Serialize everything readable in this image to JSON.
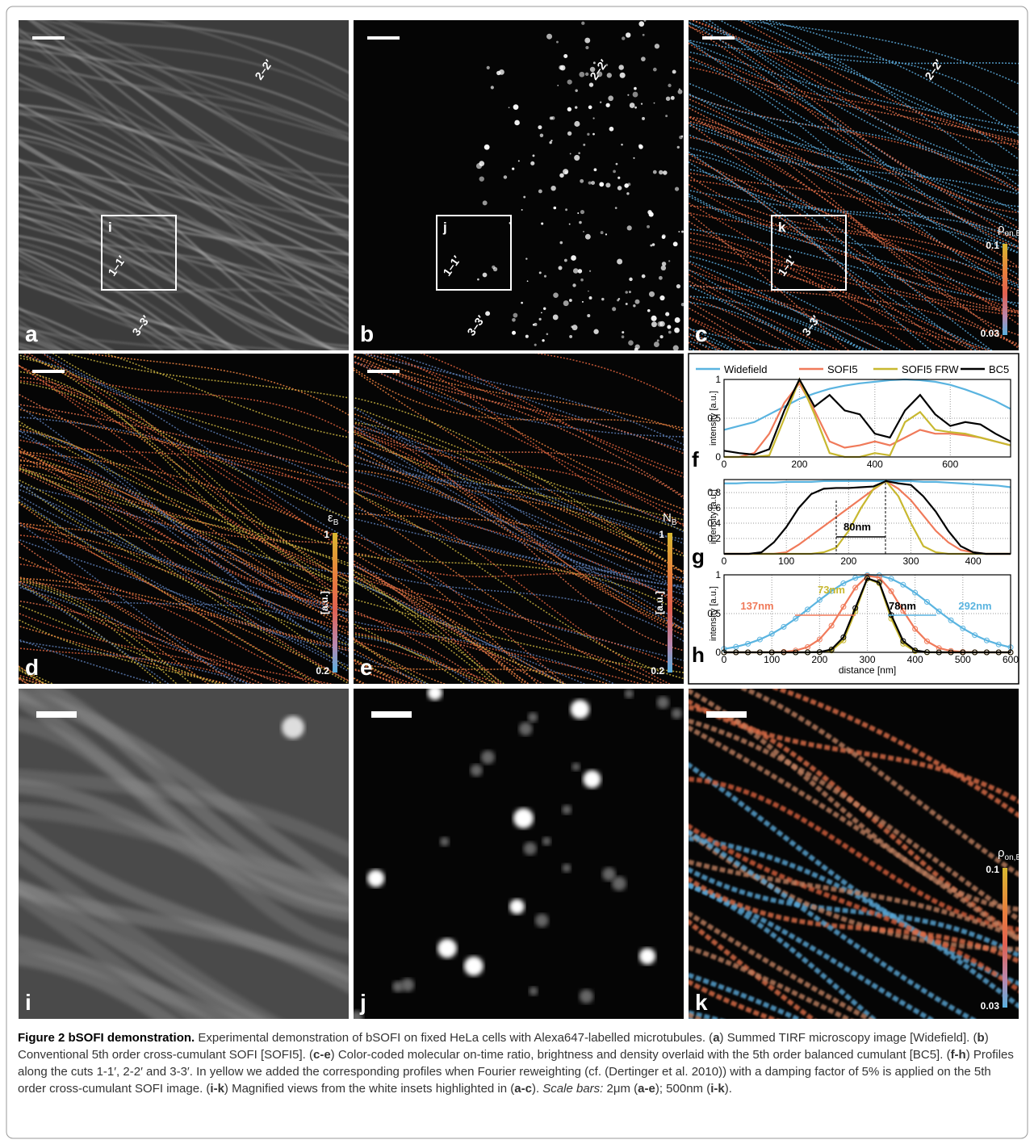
{
  "panels": [
    {
      "label": "a",
      "inset": "i",
      "cuts": [
        "2–2′",
        "1–1′",
        "3–3′"
      ]
    },
    {
      "label": "b",
      "inset": "j",
      "cuts": [
        "2–2′",
        "1–1′",
        "3–3′"
      ]
    },
    {
      "label": "c",
      "inset": "k",
      "cuts": [
        "2–2′",
        "1–1′",
        "3–3′"
      ],
      "colorbar": {
        "title": "ρ",
        "subscript": "on,B",
        "max": 0.1,
        "min": 0.03
      }
    },
    {
      "label": "d",
      "colorbar": {
        "title": "ε",
        "subscript": "B",
        "max": 1,
        "min": 0.2,
        "unit": "[a.u.]"
      }
    },
    {
      "label": "e",
      "colorbar": {
        "title": "N",
        "subscript": "B",
        "max": 1,
        "min": 0.2,
        "unit": "[a.u.]"
      }
    },
    {
      "label": "i"
    },
    {
      "label": "j"
    },
    {
      "label": "k",
      "colorbar": {
        "title": "ρ",
        "subscript": "on,B",
        "max": 0.1,
        "min": 0.03
      }
    }
  ],
  "chart_data": [
    {
      "type": "line",
      "panel": "f",
      "ylabel": "intensity [a.u.]",
      "grid": true,
      "x": [
        0,
        40,
        80,
        120,
        160,
        200,
        240,
        280,
        320,
        360,
        400,
        440,
        480,
        520,
        560,
        600,
        640,
        680,
        720,
        760
      ],
      "xlim": [
        0,
        760
      ],
      "xticks": [
        0,
        200,
        400,
        600
      ],
      "ylim": [
        0,
        1
      ],
      "yticks": [
        0,
        0.5,
        1
      ],
      "series": [
        {
          "name": "Widefield",
          "color": "#5ab4e0",
          "values": [
            0.35,
            0.4,
            0.45,
            0.55,
            0.65,
            0.75,
            0.82,
            0.88,
            0.92,
            0.95,
            0.97,
            0.99,
            1.0,
            0.99,
            0.97,
            0.93,
            0.87,
            0.8,
            0.72,
            0.62
          ]
        },
        {
          "name": "SOFI5",
          "color": "#f07a5a",
          "values": [
            0,
            0,
            0.05,
            0.3,
            0.7,
            0.95,
            0.6,
            0.2,
            0.12,
            0.15,
            0.2,
            0.15,
            0.25,
            0.35,
            0.3,
            0.3,
            0.28,
            0.25,
            0.2,
            0.15
          ]
        },
        {
          "name": "SOFI5 FRW",
          "color": "#c8b830",
          "values": [
            0,
            0,
            0,
            0.02,
            0.5,
            1.0,
            0.55,
            0.05,
            0,
            0,
            0.05,
            0.02,
            0.45,
            0.58,
            0.35,
            0.32,
            0.3,
            0.25,
            0.2,
            0.15
          ]
        },
        {
          "name": "BC5",
          "color": "#000000",
          "values": [
            0.08,
            0.05,
            0.03,
            0.1,
            0.6,
            1.0,
            0.65,
            0.8,
            0.6,
            0.55,
            0.3,
            0.25,
            0.6,
            0.8,
            0.55,
            0.4,
            0.45,
            0.42,
            0.3,
            0.2
          ]
        }
      ]
    },
    {
      "type": "line",
      "panel": "g",
      "ylabel": "intensity [a.u.]",
      "grid": true,
      "x": [
        0,
        20,
        40,
        60,
        80,
        100,
        120,
        140,
        160,
        180,
        200,
        220,
        240,
        260,
        280,
        300,
        320,
        340,
        360,
        380,
        400,
        420,
        440,
        460
      ],
      "xlim": [
        0,
        460
      ],
      "xticks": [
        0,
        100,
        200,
        300,
        400
      ],
      "ylim": [
        0,
        0.97
      ],
      "yticks": [
        0.2,
        0.4,
        0.6,
        0.8
      ],
      "annotations": [
        {
          "text": "80nm"
        }
      ],
      "series": [
        {
          "color": "#5ab4e0",
          "values": [
            0.92,
            0.92,
            0.93,
            0.93,
            0.93,
            0.94,
            0.94,
            0.94,
            0.95,
            0.95,
            0.95,
            0.95,
            0.95,
            0.95,
            0.95,
            0.95,
            0.94,
            0.94,
            0.93,
            0.92,
            0.91,
            0.9,
            0.89,
            0.87
          ]
        },
        {
          "color": "#f07a5a",
          "values": [
            0,
            0,
            0,
            0,
            0,
            0.02,
            0.12,
            0.24,
            0.36,
            0.48,
            0.6,
            0.72,
            0.84,
            0.95,
            0.85,
            0.7,
            0.5,
            0.3,
            0.15,
            0.05,
            0.02,
            0,
            0,
            0
          ]
        },
        {
          "color": "#c8b830",
          "values": [
            0,
            0,
            0,
            0,
            0,
            0,
            0,
            0,
            0.02,
            0.08,
            0.3,
            0.6,
            0.85,
            0.95,
            0.75,
            0.4,
            0.1,
            0.02,
            0,
            0,
            0,
            0,
            0,
            0
          ]
        },
        {
          "color": "#000000",
          "values": [
            0,
            0,
            0,
            0.02,
            0.15,
            0.35,
            0.6,
            0.78,
            0.85,
            0.86,
            0.86,
            0.87,
            0.88,
            0.95,
            0.92,
            0.9,
            0.75,
            0.55,
            0.3,
            0.1,
            0.02,
            0,
            0,
            0
          ]
        }
      ]
    },
    {
      "type": "line",
      "panel": "h",
      "ylabel": "intensity [a.u.]",
      "xlabel": "distance [nm]",
      "grid": true,
      "markers": true,
      "x": [
        0,
        25,
        50,
        75,
        100,
        125,
        150,
        175,
        200,
        225,
        250,
        275,
        300,
        325,
        350,
        375,
        400,
        425,
        450,
        475,
        500,
        525,
        550,
        575,
        600
      ],
      "xlim": [
        0,
        600
      ],
      "xticks": [
        0,
        100,
        200,
        300,
        400,
        500,
        600
      ],
      "ylim": [
        0,
        1
      ],
      "yticks": [
        0,
        0.5,
        1
      ],
      "annotations": [
        {
          "text": "137nm",
          "color": "#f07a5a"
        },
        {
          "text": "73nm",
          "color": "#c8b830"
        },
        {
          "text": "78nm",
          "color": "#000000"
        },
        {
          "text": "292nm",
          "color": "#5ab4e0"
        }
      ],
      "series": [
        {
          "color": "#5ab4e0",
          "values": [
            0.044,
            0.071,
            0.111,
            0.166,
            0.238,
            0.329,
            0.435,
            0.553,
            0.675,
            0.791,
            0.89,
            0.961,
            0.997,
            0.993,
            0.949,
            0.872,
            0.769,
            0.651,
            0.529,
            0.413,
            0.309,
            0.222,
            0.154,
            0.102,
            0.065
          ]
        },
        {
          "color": "#f07a5a",
          "values": [
            0,
            0,
            0,
            0,
            0.001,
            0.006,
            0.023,
            0.068,
            0.167,
            0.344,
            0.588,
            0.834,
            0.985,
            0.967,
            0.789,
            0.536,
            0.302,
            0.142,
            0.055,
            0.018,
            0.005,
            0.001,
            0,
            0,
            0
          ]
        },
        {
          "color": "#c8b830",
          "values": [
            0,
            0,
            0,
            0,
            0,
            0,
            0,
            0,
            0.002,
            0.023,
            0.154,
            0.529,
            0.949,
            0.89,
            0.435,
            0.111,
            0.015,
            0,
            0,
            0,
            0,
            0,
            0,
            0,
            0
          ]
        },
        {
          "color": "#000000",
          "values": [
            0,
            0,
            0,
            0,
            0,
            0,
            0,
            0,
            0.004,
            0.037,
            0.194,
            0.572,
            0.955,
            0.903,
            0.482,
            0.146,
            0.025,
            0.002,
            0,
            0,
            0,
            0,
            0,
            0,
            0
          ]
        }
      ]
    }
  ],
  "caption": [
    {
      "text": "Figure 2 bSOFI demonstration.",
      "bold": true
    },
    {
      "text": " Experimental demonstration of bSOFI on fixed HeLa cells with Alexa647-labelled microtubules. ("
    },
    {
      "text": "a",
      "bold": true
    },
    {
      "text": ") Summed TIRF microscopy image [Widefield]. ("
    },
    {
      "text": "b",
      "bold": true
    },
    {
      "text": ") Conventional 5th order cross-cumulant SOFI [SOFI5]. ("
    },
    {
      "text": "c-e",
      "bold": true
    },
    {
      "text": ") Color-coded molecular on-time ratio, brightness and density overlaid with the 5th order balanced cumulant [BC5]. ("
    },
    {
      "text": "f-h",
      "bold": true
    },
    {
      "text": ") Profiles along the cuts 1-1′, 2-2′ and 3-3′. In yellow we added the corresponding profiles when Fourier reweighting (cf. (Dertinger et al. 2010)) with a damping factor of 5% is applied on the 5th order cross-cumulant SOFI image. ("
    },
    {
      "text": "i-k",
      "bold": true
    },
    {
      "text": ") Magnified views from the white insets highlighted in ("
    },
    {
      "text": "a-c",
      "bold": true
    },
    {
      "text": "). "
    },
    {
      "text": "Scale bars:",
      "italic": true
    },
    {
      "text": " 2μm ("
    },
    {
      "text": "a-e",
      "bold": true
    },
    {
      "text": "); 500nm ("
    },
    {
      "text": "i-k",
      "bold": true
    },
    {
      "text": ")."
    }
  ]
}
